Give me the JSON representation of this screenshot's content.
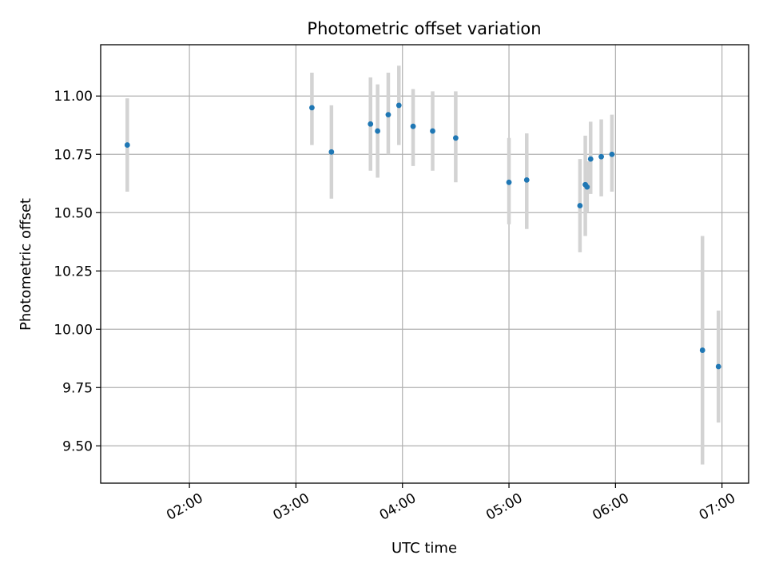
{
  "chart_data": {
    "type": "scatter",
    "title": "Photometric offset variation",
    "xlabel": "UTC time",
    "ylabel": "Photometric offset",
    "x_tick_labels": [
      "02:00",
      "03:00",
      "04:00",
      "05:00",
      "06:00",
      "07:00"
    ],
    "y_tick_labels": [
      "9.50",
      "9.75",
      "10.00",
      "10.25",
      "10.50",
      "10.75",
      "11.00"
    ],
    "y_ticks": [
      9.5,
      9.75,
      10.0,
      10.25,
      10.5,
      10.75,
      11.0
    ],
    "xlim": [
      "01:10",
      "07:15"
    ],
    "ylim": [
      9.34,
      11.22
    ],
    "grid": true,
    "colors": {
      "point": "#1f77b4",
      "errorbar": "#d3d3d3"
    },
    "points": [
      {
        "x": "01:25",
        "y": 10.79,
        "yerr_low": 10.59,
        "yerr_high": 10.99
      },
      {
        "x": "03:09",
        "y": 10.95,
        "yerr_low": 10.79,
        "yerr_high": 11.1
      },
      {
        "x": "03:20",
        "y": 10.76,
        "yerr_low": 10.56,
        "yerr_high": 10.96
      },
      {
        "x": "03:42",
        "y": 10.88,
        "yerr_low": 10.68,
        "yerr_high": 11.08
      },
      {
        "x": "03:46",
        "y": 10.85,
        "yerr_low": 10.65,
        "yerr_high": 11.05
      },
      {
        "x": "03:52",
        "y": 10.92,
        "yerr_low": 10.75,
        "yerr_high": 11.1
      },
      {
        "x": "03:58",
        "y": 10.96,
        "yerr_low": 10.79,
        "yerr_high": 11.13
      },
      {
        "x": "04:06",
        "y": 10.87,
        "yerr_low": 10.7,
        "yerr_high": 11.03
      },
      {
        "x": "04:17",
        "y": 10.85,
        "yerr_low": 10.68,
        "yerr_high": 11.02
      },
      {
        "x": "04:30",
        "y": 10.82,
        "yerr_low": 10.63,
        "yerr_high": 11.02
      },
      {
        "x": "05:00",
        "y": 10.63,
        "yerr_low": 10.45,
        "yerr_high": 10.82
      },
      {
        "x": "05:10",
        "y": 10.64,
        "yerr_low": 10.43,
        "yerr_high": 10.84
      },
      {
        "x": "05:40",
        "y": 10.53,
        "yerr_low": 10.33,
        "yerr_high": 10.73
      },
      {
        "x": "05:43",
        "y": 10.62,
        "yerr_low": 10.4,
        "yerr_high": 10.83
      },
      {
        "x": "05:44",
        "y": 10.61,
        "yerr_low": 10.5,
        "yerr_high": 10.72
      },
      {
        "x": "05:46",
        "y": 10.73,
        "yerr_low": 10.58,
        "yerr_high": 10.89
      },
      {
        "x": "05:52",
        "y": 10.74,
        "yerr_low": 10.57,
        "yerr_high": 10.9
      },
      {
        "x": "05:58",
        "y": 10.75,
        "yerr_low": 10.59,
        "yerr_high": 10.92
      },
      {
        "x": "06:49",
        "y": 9.91,
        "yerr_low": 9.42,
        "yerr_high": 10.4
      },
      {
        "x": "06:58",
        "y": 9.84,
        "yerr_low": 9.6,
        "yerr_high": 10.08
      }
    ]
  }
}
